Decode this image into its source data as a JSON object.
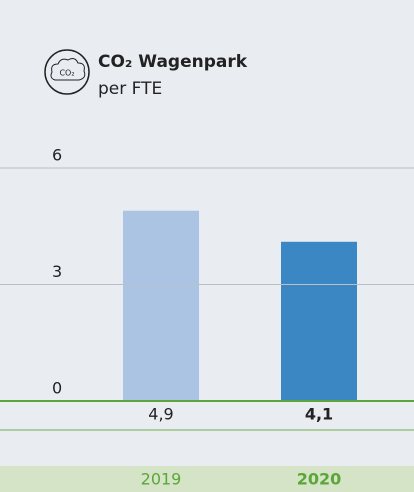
{
  "chart_data": {
    "type": "bar",
    "title": "CO₂ Wagenpark",
    "subtitle": "per FTE",
    "icon_label": "CO₂",
    "categories": [
      "2019",
      "2020"
    ],
    "values": [
      4.9,
      4.1
    ],
    "value_labels": [
      "4,9",
      "4,1"
    ],
    "colors": [
      "#abc4e4",
      "#3a87c4"
    ],
    "highlight_category": "2020",
    "ylim": [
      0,
      6
    ],
    "yticks": [
      0,
      3,
      6
    ],
    "grid": true
  }
}
